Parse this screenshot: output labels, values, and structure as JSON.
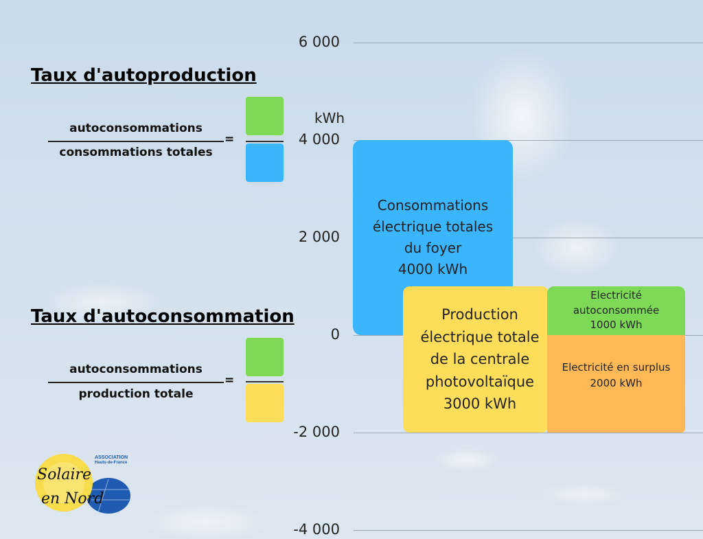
{
  "autoproduction": {
    "title": "Taux d'autoproduction",
    "numerator": "autoconsommations",
    "denominator": "consommations totales",
    "equals": "="
  },
  "autoconsommation": {
    "title": "Taux d'autoconsommation",
    "numerator": "autoconsommations",
    "denominator": "production totale",
    "equals": "="
  },
  "logo": {
    "name": "Solaire en Nord",
    "tag1": "ASSOCIATION",
    "tag2": "Hauts-de-France"
  },
  "colors": {
    "consumption": "#3bb5fd",
    "production": "#fedd5b",
    "self_consumed": "#7ed957",
    "surplus": "#feb956"
  },
  "chart_data": {
    "type": "bar",
    "ylabel": "kWh",
    "ylim": [
      -4000,
      6000
    ],
    "yticks": [
      {
        "value": 6000,
        "label": "6 000"
      },
      {
        "value": 4000,
        "label": "4 000"
      },
      {
        "value": 2000,
        "label": "2 000"
      },
      {
        "value": 0,
        "label": "0"
      },
      {
        "value": -2000,
        "label": "-2 000"
      },
      {
        "value": -4000,
        "label": "-4 000"
      }
    ],
    "grid": true,
    "bars": [
      {
        "key": "consumption",
        "lines": [
          "Consommations",
          "électrique totales",
          "du foyer",
          "4000 kWh"
        ],
        "from": 0,
        "to": 4000
      },
      {
        "key": "production",
        "lines": [
          "Production",
          "électrique totale",
          "de la centrale",
          "photovoltaïque",
          "3000 kWh"
        ],
        "from": -2000,
        "to": 1000
      },
      {
        "key": "self_consumed",
        "lines": [
          "Electricité",
          "autoconsommée",
          "1000 kWh"
        ],
        "from": 0,
        "to": 1000
      },
      {
        "key": "surplus",
        "lines": [
          "Electricité en surplus",
          "2000 kWh"
        ],
        "from": -2000,
        "to": 0
      }
    ]
  }
}
